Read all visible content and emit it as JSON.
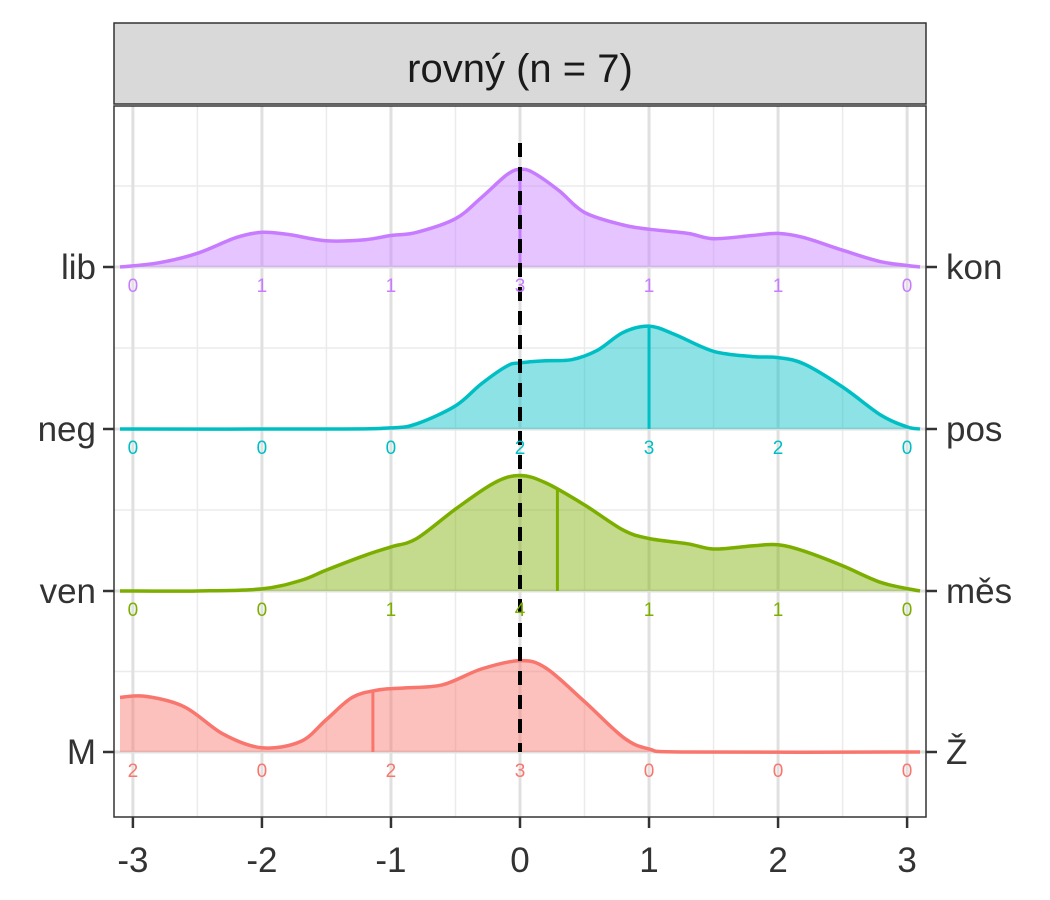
{
  "chart_data": {
    "type": "ridgeline-density",
    "facet_label": "rovný (n = 7)",
    "title": "",
    "xlabel": "",
    "ylabel": "",
    "xlim": [
      -3.1,
      3.1
    ],
    "x_ticks": [
      -3,
      -2,
      -1,
      0,
      1,
      2,
      3
    ],
    "x_tick_labels": [
      "-3",
      "-2",
      "-1",
      "0",
      "1",
      "2",
      "3"
    ],
    "grid": true,
    "reference_line_x": 0,
    "count_positions": [
      -3,
      -2,
      -1,
      0,
      1,
      2,
      3
    ],
    "series": [
      {
        "left_label": "lib",
        "right_label": "kon",
        "color": "#C77CFF",
        "counts": [
          0,
          1,
          1,
          3,
          1,
          1,
          0
        ],
        "mean": 0,
        "density": [
          [
            -3.1,
            0.0
          ],
          [
            -2.8,
            0.04
          ],
          [
            -2.5,
            0.13
          ],
          [
            -2.2,
            0.28
          ],
          [
            -2.0,
            0.33
          ],
          [
            -1.8,
            0.31
          ],
          [
            -1.5,
            0.25
          ],
          [
            -1.2,
            0.26
          ],
          [
            -1.0,
            0.3
          ],
          [
            -0.8,
            0.33
          ],
          [
            -0.5,
            0.46
          ],
          [
            -0.3,
            0.66
          ],
          [
            -0.1,
            0.88
          ],
          [
            0.0,
            0.93
          ],
          [
            0.1,
            0.9
          ],
          [
            0.3,
            0.73
          ],
          [
            0.5,
            0.52
          ],
          [
            0.8,
            0.4
          ],
          [
            1.0,
            0.36
          ],
          [
            1.3,
            0.32
          ],
          [
            1.5,
            0.27
          ],
          [
            1.8,
            0.3
          ],
          [
            2.0,
            0.32
          ],
          [
            2.2,
            0.28
          ],
          [
            2.5,
            0.16
          ],
          [
            2.8,
            0.05
          ],
          [
            3.1,
            0.0
          ]
        ]
      },
      {
        "left_label": "neg",
        "right_label": "pos",
        "color": "#00BFC4",
        "counts": [
          0,
          0,
          0,
          2,
          3,
          2,
          0
        ],
        "mean": 1,
        "density": [
          [
            -3.1,
            0.0
          ],
          [
            -1.5,
            0.0
          ],
          [
            -1.0,
            0.01
          ],
          [
            -0.8,
            0.05
          ],
          [
            -0.5,
            0.22
          ],
          [
            -0.3,
            0.43
          ],
          [
            -0.1,
            0.6
          ],
          [
            0.0,
            0.63
          ],
          [
            0.2,
            0.65
          ],
          [
            0.4,
            0.66
          ],
          [
            0.6,
            0.75
          ],
          [
            0.8,
            0.92
          ],
          [
            1.0,
            0.98
          ],
          [
            1.2,
            0.9
          ],
          [
            1.5,
            0.74
          ],
          [
            1.8,
            0.69
          ],
          [
            2.0,
            0.68
          ],
          [
            2.2,
            0.62
          ],
          [
            2.5,
            0.4
          ],
          [
            2.8,
            0.13
          ],
          [
            3.0,
            0.02
          ],
          [
            3.1,
            0.0
          ]
        ]
      },
      {
        "left_label": "ven",
        "right_label": "měs",
        "color": "#7CAE00",
        "counts": [
          0,
          0,
          1,
          4,
          1,
          1,
          0
        ],
        "mean": 0.29,
        "density": [
          [
            -3.1,
            0.0
          ],
          [
            -2.5,
            0.0
          ],
          [
            -2.0,
            0.02
          ],
          [
            -1.7,
            0.1
          ],
          [
            -1.5,
            0.2
          ],
          [
            -1.2,
            0.34
          ],
          [
            -1.0,
            0.42
          ],
          [
            -0.8,
            0.5
          ],
          [
            -0.5,
            0.78
          ],
          [
            -0.2,
            1.03
          ],
          [
            0.0,
            1.1
          ],
          [
            0.2,
            1.03
          ],
          [
            0.5,
            0.82
          ],
          [
            0.8,
            0.58
          ],
          [
            1.0,
            0.5
          ],
          [
            1.3,
            0.45
          ],
          [
            1.5,
            0.4
          ],
          [
            1.8,
            0.43
          ],
          [
            2.0,
            0.44
          ],
          [
            2.2,
            0.38
          ],
          [
            2.5,
            0.24
          ],
          [
            2.8,
            0.08
          ],
          [
            3.1,
            0.0
          ]
        ]
      },
      {
        "left_label": "M",
        "right_label": "Ž",
        "color": "#F8766D",
        "counts": [
          2,
          0,
          2,
          3,
          0,
          0,
          0
        ],
        "mean": -1.14,
        "density": [
          [
            -3.1,
            0.52
          ],
          [
            -2.9,
            0.53
          ],
          [
            -2.6,
            0.43
          ],
          [
            -2.3,
            0.17
          ],
          [
            -2.0,
            0.04
          ],
          [
            -1.7,
            0.1
          ],
          [
            -1.5,
            0.31
          ],
          [
            -1.3,
            0.52
          ],
          [
            -1.1,
            0.59
          ],
          [
            -0.9,
            0.61
          ],
          [
            -0.6,
            0.64
          ],
          [
            -0.3,
            0.79
          ],
          [
            0.0,
            0.87
          ],
          [
            0.2,
            0.8
          ],
          [
            0.5,
            0.48
          ],
          [
            0.8,
            0.14
          ],
          [
            1.0,
            0.03
          ],
          [
            1.3,
            0.0
          ],
          [
            3.1,
            0.0
          ]
        ]
      }
    ]
  }
}
